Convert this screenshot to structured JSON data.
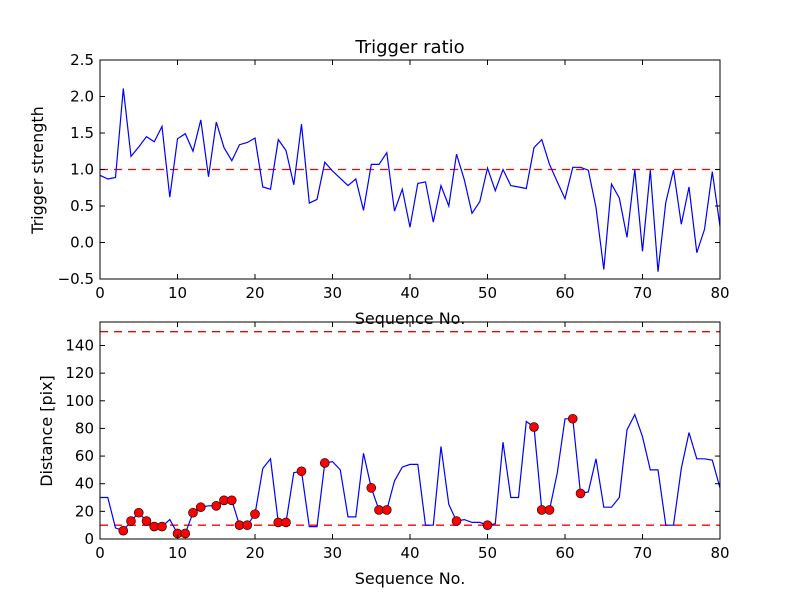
{
  "chart_data": [
    {
      "type": "line",
      "title": "Trigger ratio",
      "xlabel": "Sequence No.",
      "ylabel": "Trigger strength",
      "xlim": [
        0,
        80
      ],
      "ylim": [
        -0.5,
        2.5
      ],
      "xticks": [
        "0",
        "10",
        "20",
        "30",
        "40",
        "50",
        "60",
        "70",
        "80"
      ],
      "yticks": [
        "−0.5",
        "0.0",
        "0.5",
        "1.0",
        "1.5",
        "2.0",
        "2.5"
      ],
      "grid": false,
      "threshold_lines": [
        1.0
      ],
      "colors": {
        "series": "#0000ff",
        "threshold": "#ff0000"
      },
      "series": [
        {
          "name": "trigger strength",
          "x_start": 0,
          "values": [
            0.92,
            0.87,
            0.89,
            2.11,
            1.18,
            1.31,
            1.45,
            1.38,
            1.59,
            0.62,
            1.42,
            1.49,
            1.25,
            1.68,
            0.9,
            1.65,
            1.3,
            1.12,
            1.34,
            1.37,
            1.43,
            0.76,
            0.73,
            1.41,
            1.26,
            0.79,
            1.62,
            0.54,
            0.59,
            1.1,
            0.98,
            0.88,
            0.78,
            0.87,
            0.44,
            1.07,
            1.07,
            1.23,
            0.43,
            0.73,
            0.21,
            0.81,
            0.83,
            0.28,
            0.78,
            0.5,
            1.21,
            0.86,
            0.4,
            0.56,
            1.02,
            0.71,
            1.0,
            0.78,
            0.76,
            0.74,
            1.3,
            1.41,
            1.07,
            0.83,
            0.6,
            1.03,
            1.03,
            0.99,
            0.48,
            -0.37,
            0.8,
            0.61,
            0.07,
            1.0,
            -0.12,
            0.99,
            -0.4,
            0.55,
            0.99,
            0.25,
            0.76,
            -0.14,
            0.18,
            0.97,
            0.22
          ]
        }
      ]
    },
    {
      "type": "line",
      "title": "",
      "xlabel": "Sequence No.",
      "ylabel": "Distance [pix]",
      "xlim": [
        0,
        80
      ],
      "ylim": [
        0,
        157
      ],
      "xticks": [
        "0",
        "10",
        "20",
        "30",
        "40",
        "50",
        "60",
        "70",
        "80"
      ],
      "yticks": [
        "0",
        "20",
        "40",
        "60",
        "80",
        "100",
        "120",
        "140"
      ],
      "grid": false,
      "threshold_lines": [
        10,
        150
      ],
      "colors": {
        "series": "#0000ff",
        "threshold": "#ff0000",
        "marker": "#ff0000"
      },
      "series": [
        {
          "name": "distance",
          "x_start": 0,
          "values": [
            30,
            30,
            8,
            6,
            13,
            19,
            13,
            9,
            9,
            14,
            4,
            4,
            19,
            23,
            24,
            24,
            28,
            28,
            10,
            10,
            18,
            51,
            58,
            12,
            12,
            48,
            49,
            9,
            9,
            55,
            56,
            50,
            16,
            16,
            62,
            37,
            21,
            21,
            42,
            52,
            54,
            54,
            10,
            10,
            67,
            25,
            13,
            14,
            12,
            12,
            10,
            11,
            70,
            30,
            30,
            85,
            81,
            21,
            21,
            48,
            87,
            87,
            33,
            34,
            58,
            23,
            23,
            30,
            79,
            90,
            74,
            50,
            50,
            10,
            10,
            51,
            77,
            58,
            58,
            57,
            37
          ]
        }
      ],
      "marked_indices": [
        3,
        4,
        5,
        6,
        7,
        8,
        10,
        11,
        12,
        13,
        15,
        16,
        17,
        18,
        19,
        20,
        23,
        24,
        26,
        29,
        35,
        36,
        37,
        46,
        50,
        56,
        57,
        58,
        61,
        62
      ]
    }
  ]
}
